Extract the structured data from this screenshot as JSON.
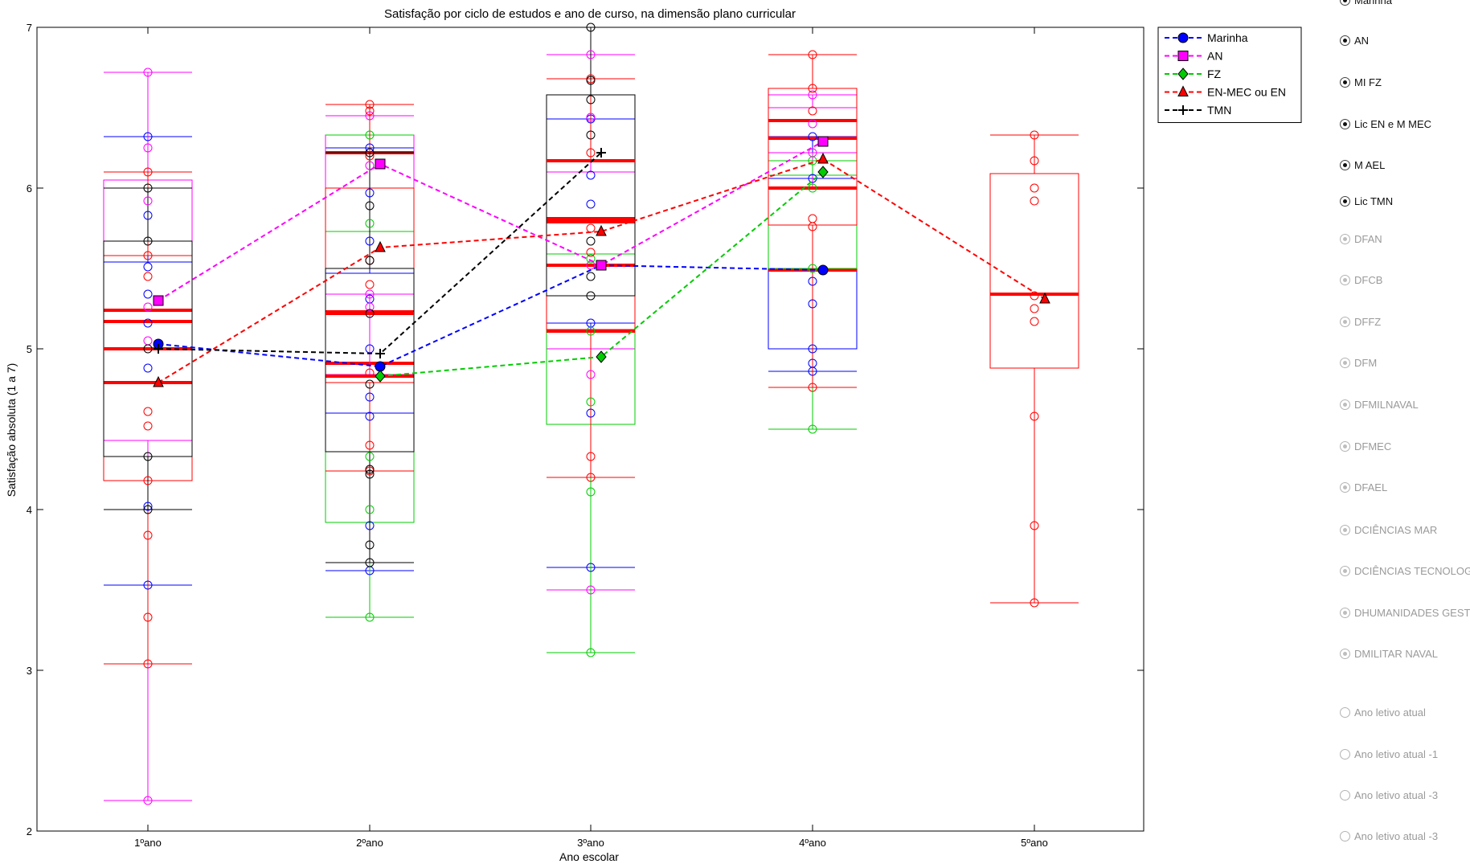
{
  "chart_data": {
    "type": "box",
    "title": "Satisfação por ciclo de estudos e ano de curso, na dimensão plano curricular",
    "xlabel": "Ano escolar",
    "ylabel": "Satisfação absoluta (1 a 7)",
    "ylim": [
      2,
      7
    ],
    "yticks": [
      "2",
      "3",
      "4",
      "5",
      "6",
      "7"
    ],
    "categories": [
      "1ºano",
      "2ºano",
      "3ºano",
      "4ºano",
      "5ºano"
    ],
    "grid": false,
    "legend_position": "top-right",
    "series": [
      {
        "name": "Marinha",
        "color": "#0000ff",
        "marker": "circle",
        "mean": [
          5.03,
          4.89,
          5.52,
          5.49,
          null
        ],
        "box": [
          {
            "cat": 0,
            "whisker_lo": 3.53,
            "q1": 4.43,
            "median": 5.17,
            "q3": 5.54,
            "whisker_hi": 6.32
          },
          {
            "cat": 1,
            "whisker_lo": 3.62,
            "q1": 4.6,
            "median": 4.91,
            "q3": 5.47,
            "whisker_hi": 6.25
          },
          {
            "cat": 2,
            "whisker_lo": 3.64,
            "q1": 5.16,
            "median": 5.81,
            "q3": 6.43,
            "whisker_hi": 6.43
          },
          {
            "cat": 3,
            "whisker_lo": 4.86,
            "q1": 5.0,
            "median": 5.49,
            "q3": 6.06,
            "whisker_hi": 6.32
          }
        ],
        "points": [
          [
            0,
            3.53
          ],
          [
            0,
            4.02
          ],
          [
            0,
            4.88
          ],
          [
            0,
            5.16
          ],
          [
            0,
            5.34
          ],
          [
            0,
            5.51
          ],
          [
            0,
            5.83
          ],
          [
            0,
            6.32
          ],
          [
            1,
            3.62
          ],
          [
            1,
            3.9
          ],
          [
            1,
            4.58
          ],
          [
            1,
            4.7
          ],
          [
            1,
            5.0
          ],
          [
            1,
            5.31
          ],
          [
            1,
            5.67
          ],
          [
            1,
            5.97
          ],
          [
            1,
            6.25
          ],
          [
            2,
            3.64
          ],
          [
            2,
            4.6
          ],
          [
            2,
            5.16
          ],
          [
            2,
            5.9
          ],
          [
            2,
            6.08
          ],
          [
            2,
            6.43
          ],
          [
            3,
            4.86
          ],
          [
            3,
            4.91
          ],
          [
            3,
            5.0
          ],
          [
            3,
            5.28
          ],
          [
            3,
            5.42
          ],
          [
            3,
            6.06
          ],
          [
            3,
            6.32
          ]
        ]
      },
      {
        "name": "AN",
        "color": "#ff00ff",
        "marker": "square",
        "mean": [
          5.3,
          6.15,
          5.52,
          6.29,
          null
        ],
        "box": [
          {
            "cat": 0,
            "whisker_lo": 2.19,
            "q1": 4.43,
            "median": 5.24,
            "q3": 6.05,
            "whisker_hi": 6.72
          },
          {
            "cat": 1,
            "whisker_lo": 4.84,
            "q1": 5.34,
            "median": 6.22,
            "q3": 6.33,
            "whisker_hi": 6.45
          },
          {
            "cat": 2,
            "whisker_lo": 3.5,
            "q1": 5.0,
            "median": 5.52,
            "q3": 6.1,
            "whisker_hi": 6.83
          },
          {
            "cat": 3,
            "whisker_lo": 6.0,
            "q1": 6.22,
            "median": 6.31,
            "q3": 6.5,
            "whisker_hi": 6.58
          }
        ],
        "points": [
          [
            0,
            2.19
          ],
          [
            0,
            5.05
          ],
          [
            0,
            5.26
          ],
          [
            0,
            5.92
          ],
          [
            0,
            6.25
          ],
          [
            0,
            6.72
          ],
          [
            1,
            5.26
          ],
          [
            1,
            5.34
          ],
          [
            1,
            6.14
          ],
          [
            1,
            6.45
          ],
          [
            2,
            3.5
          ],
          [
            2,
            4.84
          ],
          [
            2,
            5.52
          ],
          [
            2,
            6.44
          ],
          [
            2,
            6.83
          ],
          [
            3,
            6.22
          ],
          [
            3,
            6.4
          ],
          [
            3,
            6.58
          ]
        ]
      },
      {
        "name": "FZ",
        "color": "#00cc00",
        "marker": "diamond",
        "mean": [
          null,
          4.83,
          4.95,
          6.1,
          null
        ],
        "box": [
          {
            "cat": 1,
            "whisker_lo": 3.33,
            "q1": 3.92,
            "median": 4.83,
            "q3": 5.73,
            "whisker_hi": 6.33
          },
          {
            "cat": 2,
            "whisker_lo": 3.11,
            "q1": 4.53,
            "median": 5.11,
            "q3": 5.59,
            "whisker_hi": 5.59
          },
          {
            "cat": 3,
            "whisker_lo": 4.5,
            "q1": 5.5,
            "median": 6.0,
            "q3": 6.08,
            "whisker_hi": 6.17
          }
        ],
        "points": [
          [
            1,
            3.33
          ],
          [
            1,
            4.0
          ],
          [
            1,
            4.33
          ],
          [
            1,
            5.78
          ],
          [
            1,
            6.33
          ],
          [
            2,
            3.11
          ],
          [
            2,
            4.11
          ],
          [
            2,
            4.67
          ],
          [
            2,
            5.11
          ],
          [
            2,
            5.56
          ],
          [
            3,
            4.5
          ],
          [
            3,
            5.5
          ],
          [
            3,
            6.0
          ],
          [
            3,
            6.17
          ]
        ]
      },
      {
        "name": "EN-MEC ou EN",
        "color": "#ff0000",
        "marker": "triangle",
        "mean": [
          4.79,
          5.63,
          5.73,
          6.18,
          5.31
        ],
        "box": [
          {
            "cat": 0,
            "whisker_lo": 3.04,
            "q1": 4.18,
            "median": 4.79,
            "q3": 5.58,
            "whisker_hi": 6.1
          },
          {
            "cat": 1,
            "whisker_lo": 4.24,
            "q1": 4.79,
            "median": 5.23,
            "q3": 6.0,
            "whisker_hi": 6.52
          },
          {
            "cat": 2,
            "whisker_lo": 4.2,
            "q1": 5.12,
            "median": 5.79,
            "q3": 6.17,
            "whisker_hi": 6.68
          },
          {
            "cat": 3,
            "whisker_lo": 4.76,
            "q1": 5.77,
            "median": 6.42,
            "q3": 6.62,
            "whisker_hi": 6.83
          },
          {
            "cat": 4,
            "whisker_lo": 3.42,
            "q1": 4.88,
            "median": 5.34,
            "q3": 6.09,
            "whisker_hi": 6.33
          }
        ],
        "points": [
          [
            0,
            3.04
          ],
          [
            0,
            3.33
          ],
          [
            0,
            3.84
          ],
          [
            0,
            4.18
          ],
          [
            0,
            4.52
          ],
          [
            0,
            4.61
          ],
          [
            0,
            5.45
          ],
          [
            0,
            5.58
          ],
          [
            0,
            6.1
          ],
          [
            1,
            4.24
          ],
          [
            1,
            4.4
          ],
          [
            1,
            4.85
          ],
          [
            1,
            5.4
          ],
          [
            1,
            5.55
          ],
          [
            1,
            6.2
          ],
          [
            1,
            6.48
          ],
          [
            1,
            6.52
          ],
          [
            2,
            4.2
          ],
          [
            2,
            4.33
          ],
          [
            2,
            5.6
          ],
          [
            2,
            5.75
          ],
          [
            2,
            6.22
          ],
          [
            2,
            6.68
          ],
          [
            3,
            4.76
          ],
          [
            3,
            5.76
          ],
          [
            3,
            5.81
          ],
          [
            3,
            6.48
          ],
          [
            3,
            6.62
          ],
          [
            3,
            6.83
          ],
          [
            4,
            3.42
          ],
          [
            4,
            3.9
          ],
          [
            4,
            4.58
          ],
          [
            4,
            5.17
          ],
          [
            4,
            5.25
          ],
          [
            4,
            5.33
          ],
          [
            4,
            5.92
          ],
          [
            4,
            6.0
          ],
          [
            4,
            6.17
          ],
          [
            4,
            6.33
          ]
        ]
      },
      {
        "name": "TMN",
        "color": "#000000",
        "marker": "plus",
        "mean": [
          5.0,
          4.97,
          6.22,
          null,
          null
        ],
        "box": [
          {
            "cat": 0,
            "whisker_lo": 4.0,
            "q1": 4.33,
            "median": 5.0,
            "q3": 5.67,
            "whisker_hi": 6.0
          },
          {
            "cat": 1,
            "whisker_lo": 3.67,
            "q1": 4.36,
            "median": 5.22,
            "q3": 5.5,
            "whisker_hi": 6.22
          },
          {
            "cat": 2,
            "whisker_lo": 5.33,
            "q1": 5.33,
            "median": 6.17,
            "q3": 6.58,
            "whisker_hi": 7.0
          }
        ],
        "points": [
          [
            0,
            4.0
          ],
          [
            0,
            4.33
          ],
          [
            0,
            5.0
          ],
          [
            0,
            5.67
          ],
          [
            0,
            6.0
          ],
          [
            1,
            3.67
          ],
          [
            1,
            3.78
          ],
          [
            1,
            4.22
          ],
          [
            1,
            4.25
          ],
          [
            1,
            4.78
          ],
          [
            1,
            5.22
          ],
          [
            1,
            5.55
          ],
          [
            1,
            5.89
          ],
          [
            1,
            6.22
          ],
          [
            2,
            5.33
          ],
          [
            2,
            5.45
          ],
          [
            2,
            5.67
          ],
          [
            2,
            6.33
          ],
          [
            2,
            6.55
          ],
          [
            2,
            6.67
          ],
          [
            2,
            7.0
          ]
        ]
      }
    ]
  },
  "side_panel": {
    "options": [
      {
        "label": "Marinha",
        "selected": true,
        "enabled": true
      },
      {
        "label": "AN",
        "selected": true,
        "enabled": true
      },
      {
        "label": "MI FZ",
        "selected": true,
        "enabled": true
      },
      {
        "label": "Lic EN e M MEC",
        "selected": true,
        "enabled": true
      },
      {
        "label": "M AEL",
        "selected": true,
        "enabled": true
      },
      {
        "label": "Lic TMN",
        "selected": true,
        "enabled": true
      },
      {
        "label": "DFAN",
        "selected": true,
        "enabled": false
      },
      {
        "label": "DFCB",
        "selected": true,
        "enabled": false
      },
      {
        "label": "DFFZ",
        "selected": true,
        "enabled": false
      },
      {
        "label": "DFM",
        "selected": true,
        "enabled": false
      },
      {
        "label": "DFMILNAVAL",
        "selected": true,
        "enabled": false
      },
      {
        "label": "DFMEC",
        "selected": true,
        "enabled": false
      },
      {
        "label": "DFAEL",
        "selected": true,
        "enabled": false
      },
      {
        "label": "DCIÊNCIAS MAR",
        "selected": true,
        "enabled": false
      },
      {
        "label": "DCIÊNCIAS TECNOLOGIA",
        "selected": true,
        "enabled": false
      },
      {
        "label": "DHUMANIDADES GESTÃ",
        "selected": true,
        "enabled": false
      },
      {
        "label": "DMILITAR NAVAL",
        "selected": true,
        "enabled": false
      },
      {
        "label": "Ano letivo atual",
        "selected": false,
        "enabled": false
      },
      {
        "label": "Ano letivo atual -1",
        "selected": false,
        "enabled": false
      },
      {
        "label": "Ano letivo atual -3",
        "selected": false,
        "enabled": false
      },
      {
        "label": "Ano letivo atual -3",
        "selected": false,
        "enabled": false
      }
    ]
  }
}
